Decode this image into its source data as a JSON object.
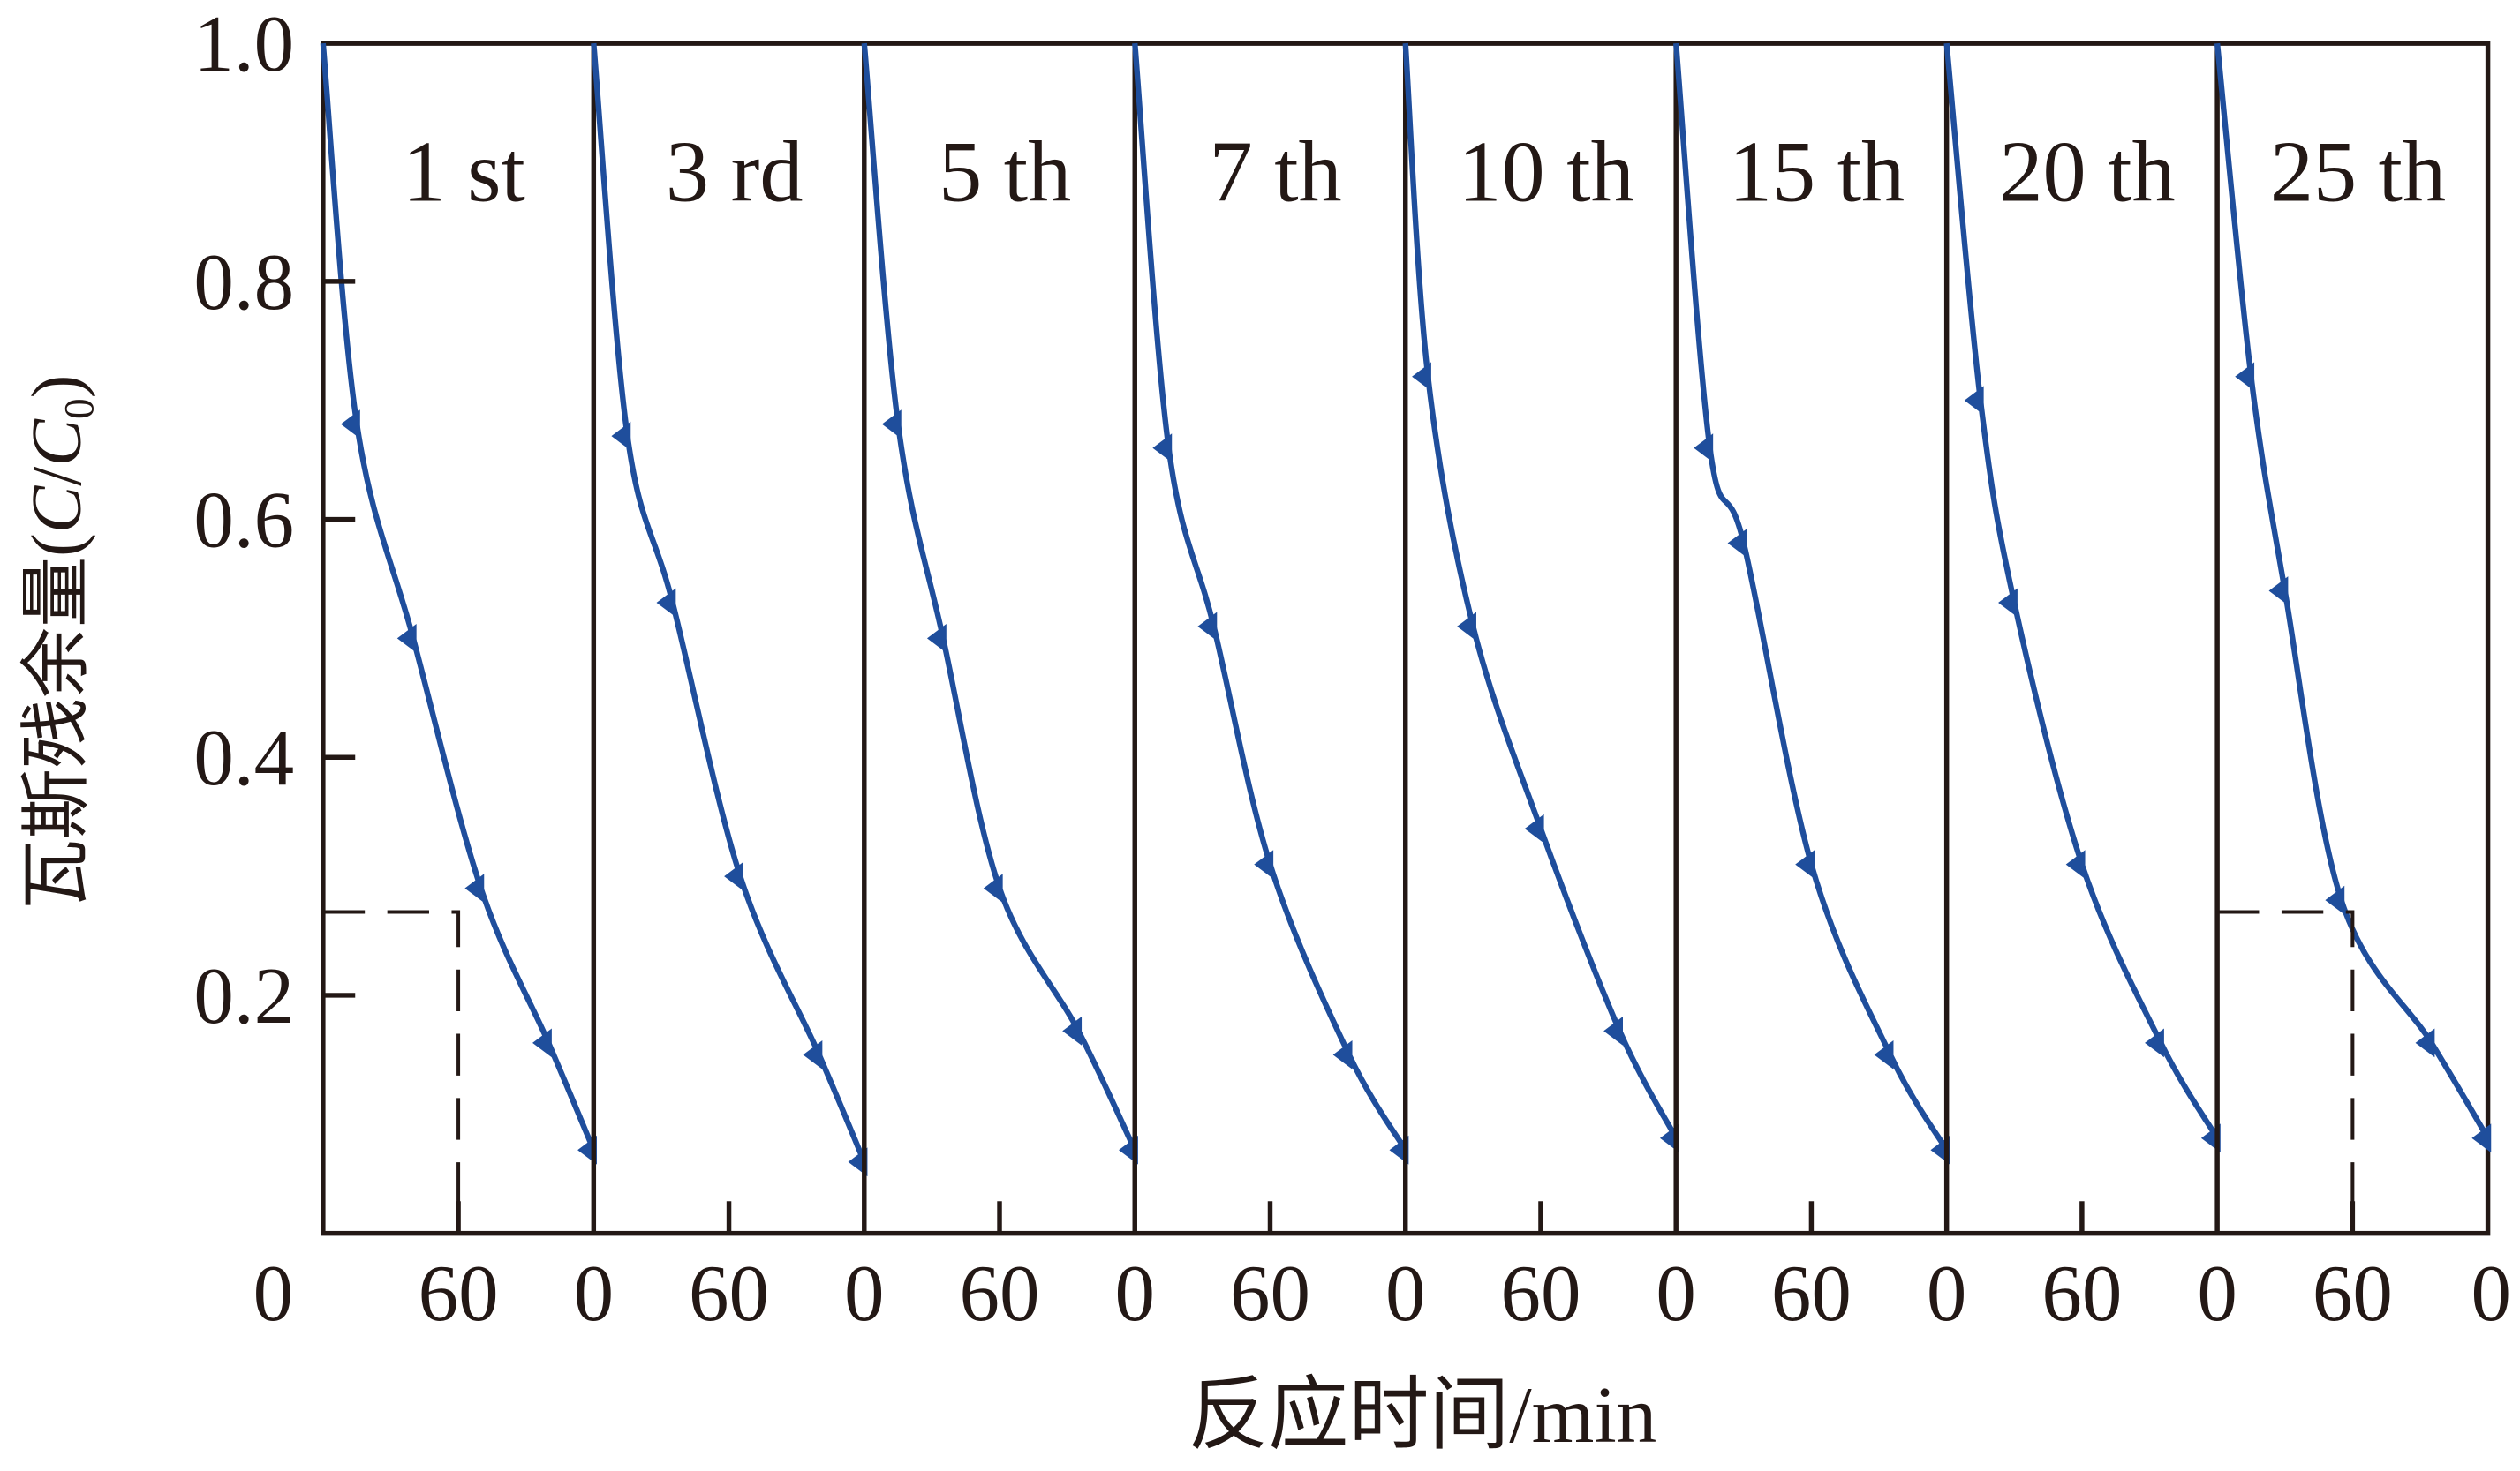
{
  "chart_data": {
    "type": "line",
    "title": "",
    "xlabel": "反应时间/min",
    "ylabel": "瓦斯残余量(C/C0)",
    "ylabel_parts": {
      "cn": "瓦斯残余量",
      "open": "(",
      "c": "C",
      "slash": "/",
      "c0": "C",
      "sub": "0",
      "close": ")"
    },
    "ylim": [
      0.0,
      1.0
    ],
    "yticks": [
      0.2,
      0.4,
      0.6,
      0.8,
      1.0
    ],
    "ytick_labels": [
      "0.2",
      "0.4",
      "0.6",
      "0.8",
      "1.0"
    ],
    "panel_xlim": [
      0,
      120
    ],
    "xtick_labels": [
      "0",
      "60",
      "0",
      "60",
      "0",
      "60",
      "0",
      "60",
      "0",
      "60",
      "0",
      "60",
      "0",
      "60",
      "0",
      "60",
      "0"
    ],
    "grid": false,
    "legend": "none",
    "line_color": "#1f4e9c",
    "axis_color": "#231815",
    "marker": "left-pointing triangle",
    "x_minutes": [
      0,
      20,
      40,
      60,
      80,
      100,
      120
    ],
    "panels": [
      {
        "label": "1 st",
        "values": [
          1.0,
          0.68,
          0.5,
          0.29,
          0.16,
          0.07
        ],
        "x": [
          0,
          15,
          40,
          70,
          100,
          120
        ]
      },
      {
        "label": "3 rd",
        "values": [
          1.0,
          0.67,
          0.53,
          0.3,
          0.15,
          0.06
        ],
        "x": [
          0,
          15,
          35,
          65,
          100,
          120
        ]
      },
      {
        "label": "5 th",
        "values": [
          1.0,
          0.68,
          0.5,
          0.29,
          0.17,
          0.07
        ],
        "x": [
          0,
          15,
          35,
          60,
          95,
          120
        ]
      },
      {
        "label": "7 th",
        "values": [
          1.0,
          0.66,
          0.51,
          0.31,
          0.15,
          0.07
        ],
        "x": [
          0,
          15,
          35,
          60,
          95,
          120
        ]
      },
      {
        "label": "10 th",
        "values": [
          1.0,
          0.72,
          0.51,
          0.34,
          0.17,
          0.08
        ],
        "x": [
          0,
          10,
          30,
          60,
          95,
          120
        ]
      },
      {
        "label": "15 th",
        "values": [
          1.0,
          0.66,
          0.58,
          0.31,
          0.15,
          0.07
        ],
        "x": [
          0,
          15,
          30,
          60,
          95,
          120
        ]
      },
      {
        "label": "20 th",
        "values": [
          1.0,
          0.7,
          0.53,
          0.31,
          0.16,
          0.08
        ],
        "x": [
          0,
          15,
          30,
          60,
          95,
          120
        ]
      },
      {
        "label": "25 th",
        "values": [
          1.0,
          0.72,
          0.54,
          0.28,
          0.16,
          0.08
        ],
        "x": [
          0,
          15,
          30,
          55,
          95,
          120
        ]
      }
    ],
    "annotations": [
      {
        "type": "dashed-guide",
        "panel": "1 st",
        "y": 0.27,
        "x_min": 60
      },
      {
        "type": "dashed-guide",
        "panel": "25 th",
        "y": 0.27,
        "x_min": 60
      }
    ]
  }
}
